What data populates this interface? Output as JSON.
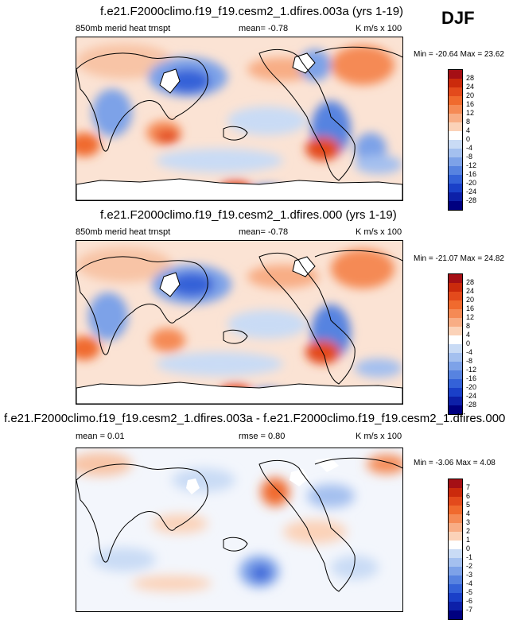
{
  "season_label": "DJF",
  "panels": [
    {
      "title": "f.e21.F2000climo.f19_f19.cesm2_1.dfires.003a (yrs 1-19)",
      "left_label": "850mb merid heat trnspt",
      "mid_label": "mean=  -0.78",
      "units": "K m/s x 100",
      "minmax": "Min = -20.64 Max =  23.62"
    },
    {
      "title": "f.e21.F2000climo.f19_f19.cesm2_1.dfires.000 (yrs 1-19)",
      "left_label": "850mb merid heat trnspt",
      "mid_label": "mean=  -0.78",
      "units": "K m/s x 100",
      "minmax": "Min = -21.07 Max =  24.82"
    },
    {
      "title": "f.e21.F2000climo.f19_f19.cesm2_1.dfires.003a - f.e21.F2000climo.f19_f19.cesm2_1.dfires.000",
      "left_label": "mean =  0.01",
      "mid_label": "rmse =  0.80",
      "units": "K m/s x 100",
      "minmax": "Min = -3.06 Max =  4.08"
    }
  ],
  "chart_data": [
    {
      "type": "heatmap",
      "title": "f.e21.F2000climo.f19_f19.cesm2_1.dfires.003a (yrs 1-19)",
      "variable": "850mb merid heat trnspt",
      "units": "K m/s x 100",
      "mean": -0.78,
      "min": -20.64,
      "max": 23.62,
      "colorbar_levels": [
        "28",
        "24",
        "20",
        "16",
        "12",
        "8",
        "4",
        "0",
        "-4",
        "-8",
        "-12",
        "-16",
        "-20",
        "-24",
        "-28"
      ],
      "colors": [
        "#a50f15",
        "#cb2a0c",
        "#e34a1c",
        "#f06a2e",
        "#f58a55",
        "#f8ad85",
        "#fbd2b8",
        "#ffffff",
        "#c9dbf5",
        "#a4c0ef",
        "#7da2e8",
        "#5783e0",
        "#3462d8",
        "#1a40c8",
        "#0d20a8",
        "#000080"
      ]
    },
    {
      "type": "heatmap",
      "title": "f.e21.F2000climo.f19_f19.cesm2_1.dfires.000 (yrs 1-19)",
      "variable": "850mb merid heat trnspt",
      "units": "K m/s x 100",
      "mean": -0.78,
      "min": -21.07,
      "max": 24.82,
      "colorbar_levels": [
        "28",
        "24",
        "20",
        "16",
        "12",
        "8",
        "4",
        "0",
        "-4",
        "-8",
        "-12",
        "-16",
        "-20",
        "-24",
        "-28"
      ],
      "colors": [
        "#a50f15",
        "#cb2a0c",
        "#e34a1c",
        "#f06a2e",
        "#f58a55",
        "#f8ad85",
        "#fbd2b8",
        "#ffffff",
        "#c9dbf5",
        "#a4c0ef",
        "#7da2e8",
        "#5783e0",
        "#3462d8",
        "#1a40c8",
        "#0d20a8",
        "#000080"
      ]
    },
    {
      "type": "heatmap",
      "title": "f.e21.F2000climo.f19_f19.cesm2_1.dfires.003a - f.e21.F2000climo.f19_f19.cesm2_1.dfires.000",
      "units": "K m/s x 100",
      "mean": 0.01,
      "rmse": 0.8,
      "min": -3.06,
      "max": 4.08,
      "colorbar_levels": [
        "7",
        "6",
        "5",
        "4",
        "3",
        "2",
        "1",
        "0",
        "-1",
        "-2",
        "-3",
        "-4",
        "-5",
        "-6",
        "-7"
      ],
      "colors": [
        "#a50f15",
        "#cb2a0c",
        "#e34a1c",
        "#f06a2e",
        "#f58a55",
        "#f8ad85",
        "#fbd2b8",
        "#ffffff",
        "#c9dbf5",
        "#a4c0ef",
        "#7da2e8",
        "#5783e0",
        "#3462d8",
        "#1a40c8",
        "#0d20a8",
        "#000080"
      ]
    }
  ]
}
